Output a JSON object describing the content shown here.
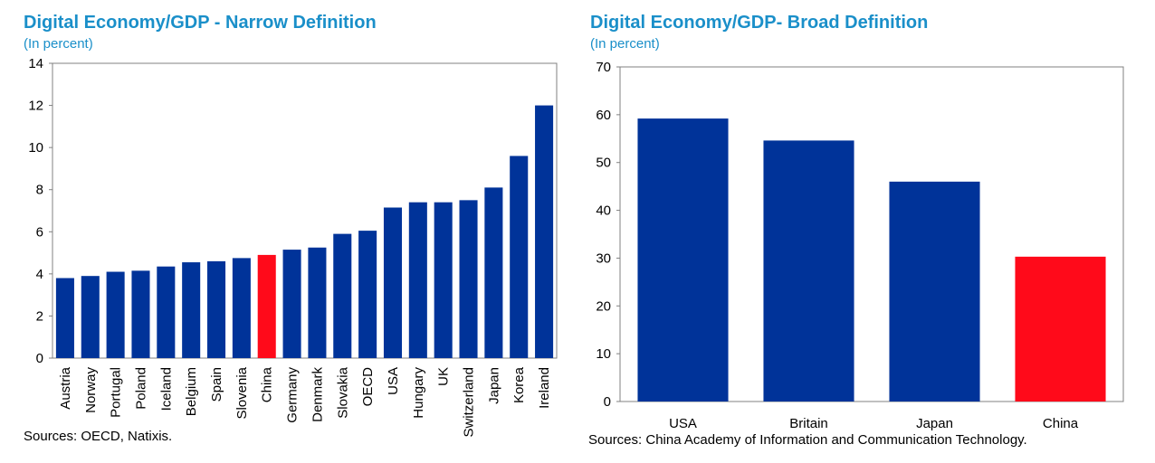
{
  "chart_data": [
    {
      "type": "bar",
      "title": "Digital Economy/GDP - Narrow Definition",
      "subtitle": "(In percent)",
      "source": "Sources: OECD, Natixis.",
      "categories": [
        "Austria",
        "Norway",
        "Portugal",
        "Poland",
        "Iceland",
        "Belgium",
        "Spain",
        "Slovenia",
        "China",
        "Germany",
        "Denmark",
        "Slovakia",
        "OECD",
        "USA",
        "Hungary",
        "UK",
        "Switzerland",
        "Japan",
        "Korea",
        "Ireland"
      ],
      "values": [
        3.8,
        3.9,
        4.1,
        4.15,
        4.35,
        4.55,
        4.6,
        4.75,
        4.9,
        5.15,
        5.25,
        5.9,
        6.05,
        7.15,
        7.4,
        7.4,
        7.5,
        8.1,
        9.6,
        12.0
      ],
      "highlight": "China",
      "ylim": [
        0,
        14
      ],
      "yticks": [
        0,
        2,
        4,
        6,
        8,
        10,
        12,
        14
      ],
      "xlabel": "",
      "ylabel": "",
      "colors": {
        "bar": "#003399",
        "highlight": "#ff0a1a"
      },
      "grid": false,
      "legend": "none"
    },
    {
      "type": "bar",
      "title": "Digital Economy/GDP- Broad Definition",
      "subtitle": "(In percent)",
      "source": "Sources: China  Academy of Information and Communication Technology.",
      "categories": [
        "USA",
        "Britain",
        "Japan",
        "China"
      ],
      "values": [
        59.2,
        54.6,
        46.0,
        30.3
      ],
      "highlight": "China",
      "ylim": [
        0,
        70
      ],
      "yticks": [
        0,
        10,
        20,
        30,
        40,
        50,
        60,
        70
      ],
      "xlabel": "",
      "ylabel": "",
      "colors": {
        "bar": "#003399",
        "highlight": "#ff0a1a"
      },
      "grid": false,
      "legend": "none"
    }
  ]
}
